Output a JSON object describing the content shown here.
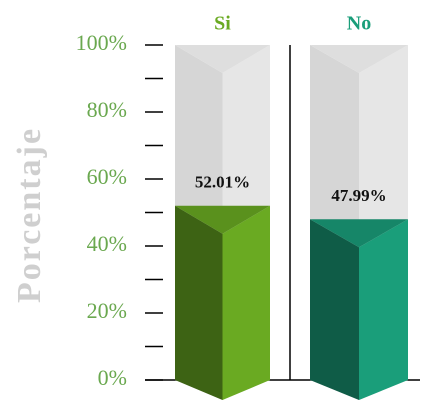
{
  "chart_data": {
    "type": "bar",
    "y_label": "Porcentaje",
    "categories": [
      "Si",
      "No"
    ],
    "values": [
      52.01,
      47.99
    ],
    "value_labels": [
      "52.01%",
      "47.99%"
    ],
    "colors": [
      "#6aaa22",
      "#1a9e7a"
    ],
    "ylim": [
      0,
      100
    ],
    "yticks": [
      {
        "value": 0,
        "label": "0%"
      },
      {
        "value": 20,
        "label": "20%"
      },
      {
        "value": 40,
        "label": "40%"
      },
      {
        "value": 60,
        "label": "60%"
      },
      {
        "value": 80,
        "label": "80%"
      },
      {
        "value": 100,
        "label": "100%"
      }
    ],
    "minor_yticks": [
      10,
      30,
      50,
      70,
      90
    ]
  }
}
